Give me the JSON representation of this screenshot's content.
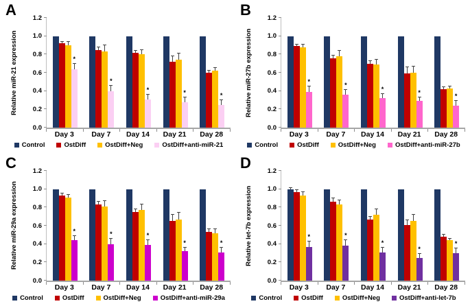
{
  "figure": {
    "background": "#ffffff",
    "panels": [
      "A",
      "B",
      "C",
      "D"
    ]
  },
  "axis": {
    "ylim": [
      0,
      1.2
    ],
    "ytick_labels": [
      "0.0",
      "0.2",
      "0.4",
      "0.6",
      "0.8",
      "1.0",
      "1.2"
    ],
    "grid": false
  },
  "colors": {
    "control": "#1F3864",
    "ostdiff": "#C00000",
    "ostdiff_neg": "#FFC000",
    "anti_mir21": "#FBCFF3",
    "anti_mir27b": "#FF66CC",
    "anti_mir29a": "#CC00CC",
    "anti_let7b": "#7030A0",
    "axis_line": "#A6A6A6"
  },
  "chart_data": [
    {
      "type": "bar",
      "panel": "A",
      "ylabel": "Relative miR-21 expression",
      "xlabel": "",
      "ylim": [
        0,
        1.2
      ],
      "grid": false,
      "legend_position": "bottom",
      "categories": [
        "Day 3",
        "Day 7",
        "Day 14",
        "Day 21",
        "Day 28"
      ],
      "series": [
        {
          "name": "Control",
          "color": "#1F3864",
          "values": [
            1.0,
            1.0,
            1.0,
            1.0,
            1.0
          ],
          "errors": [
            0,
            0,
            0,
            0,
            0
          ],
          "sig": [
            "",
            "",
            "",
            "",
            ""
          ]
        },
        {
          "name": "OstDiff",
          "color": "#C00000",
          "values": [
            0.92,
            0.85,
            0.82,
            0.72,
            0.6
          ],
          "errors": [
            0.02,
            0.03,
            0.02,
            0.06,
            0.02
          ],
          "sig": [
            "",
            "",
            "",
            "",
            ""
          ]
        },
        {
          "name": "OstDiff+Neg",
          "color": "#FFC000",
          "values": [
            0.9,
            0.83,
            0.8,
            0.74,
            0.62
          ],
          "errors": [
            0.04,
            0.07,
            0.05,
            0.07,
            0.03
          ],
          "sig": [
            "",
            "",
            "",
            "",
            ""
          ]
        },
        {
          "name": "OstDiff+anti-miR-21",
          "color": "#FBCFF3",
          "values": [
            0.64,
            0.4,
            0.31,
            0.28,
            0.25
          ],
          "errors": [
            0.06,
            0.06,
            0.05,
            0.05,
            0.05
          ],
          "sig": [
            "*",
            "*",
            "*",
            "*",
            "*"
          ]
        }
      ]
    },
    {
      "type": "bar",
      "panel": "B",
      "ylabel": "Relative miR-27b expression",
      "xlabel": "",
      "ylim": [
        0,
        1.2
      ],
      "grid": false,
      "legend_position": "bottom",
      "categories": [
        "Day 3",
        "Day 7",
        "Day 14",
        "Day 21",
        "Day 28"
      ],
      "series": [
        {
          "name": "Control",
          "color": "#1F3864",
          "values": [
            1.0,
            1.0,
            1.0,
            1.0,
            1.0
          ],
          "errors": [
            0,
            0,
            0,
            0,
            0
          ],
          "sig": [
            "",
            "",
            "",
            "",
            ""
          ]
        },
        {
          "name": "OstDiff",
          "color": "#C00000",
          "values": [
            0.89,
            0.76,
            0.7,
            0.59,
            0.42
          ],
          "errors": [
            0.02,
            0.03,
            0.03,
            0.07,
            0.02
          ],
          "sig": [
            "",
            "",
            "",
            "",
            ""
          ]
        },
        {
          "name": "OstDiff+Neg",
          "color": "#FFC000",
          "values": [
            0.88,
            0.78,
            0.69,
            0.6,
            0.43
          ],
          "errors": [
            0.03,
            0.06,
            0.05,
            0.07,
            0.02
          ],
          "sig": [
            "",
            "",
            "",
            "",
            ""
          ]
        },
        {
          "name": "OstDiff+anti-miR-27b",
          "color": "#FF66CC",
          "values": [
            0.39,
            0.36,
            0.32,
            0.29,
            0.24
          ],
          "errors": [
            0.06,
            0.05,
            0.05,
            0.04,
            0.05
          ],
          "sig": [
            "*",
            "*",
            "*",
            "*",
            "*"
          ]
        }
      ]
    },
    {
      "type": "bar",
      "panel": "C",
      "ylabel": "Relative miR-29a expression",
      "xlabel": "",
      "ylim": [
        0,
        1.2
      ],
      "grid": false,
      "legend_position": "bottom",
      "categories": [
        "Day 3",
        "Day 7",
        "Day 14",
        "Day 21",
        "Day 28"
      ],
      "series": [
        {
          "name": "Control",
          "color": "#1F3864",
          "values": [
            1.0,
            1.0,
            1.0,
            1.0,
            1.0
          ],
          "errors": [
            0,
            0,
            0,
            0,
            0
          ],
          "sig": [
            "",
            "",
            "",
            "",
            ""
          ]
        },
        {
          "name": "OstDiff",
          "color": "#C00000",
          "values": [
            0.93,
            0.83,
            0.75,
            0.65,
            0.53
          ],
          "errors": [
            0.02,
            0.03,
            0.03,
            0.07,
            0.03
          ],
          "sig": [
            "",
            "",
            "",
            "",
            ""
          ]
        },
        {
          "name": "OstDiff+Neg",
          "color": "#FFC000",
          "values": [
            0.91,
            0.81,
            0.77,
            0.67,
            0.52
          ],
          "errors": [
            0.03,
            0.06,
            0.06,
            0.07,
            0.04
          ],
          "sig": [
            "",
            "",
            "",
            "",
            ""
          ]
        },
        {
          "name": "OstDiff+anti-miR-29a",
          "color": "#CC00CC",
          "values": [
            0.44,
            0.4,
            0.39,
            0.32,
            0.31
          ],
          "errors": [
            0.05,
            0.06,
            0.05,
            0.04,
            0.05
          ],
          "sig": [
            "*",
            "*",
            "*",
            "*",
            "*"
          ]
        }
      ]
    },
    {
      "type": "bar",
      "panel": "D",
      "ylabel": "Relative let-7b expression",
      "xlabel": "",
      "ylim": [
        0,
        1.2
      ],
      "grid": false,
      "legend_position": "bottom",
      "categories": [
        "Day 3",
        "Day 7",
        "Day 14",
        "Day 21",
        "Day 28"
      ],
      "series": [
        {
          "name": "Control",
          "color": "#1F3864",
          "values": [
            1.0,
            1.0,
            1.0,
            1.0,
            1.0
          ],
          "errors": [
            0.01,
            0,
            0,
            0,
            0
          ],
          "sig": [
            "",
            "",
            "",
            "",
            ""
          ]
        },
        {
          "name": "OstDiff",
          "color": "#C00000",
          "values": [
            0.97,
            0.86,
            0.67,
            0.61,
            0.48
          ],
          "errors": [
            0.02,
            0.04,
            0.03,
            0.05,
            0.02
          ],
          "sig": [
            "",
            "",
            "",
            "",
            ""
          ]
        },
        {
          "name": "OstDiff+Neg",
          "color": "#FFC000",
          "values": [
            0.93,
            0.83,
            0.72,
            0.65,
            0.44
          ],
          "errors": [
            0.04,
            0.05,
            0.06,
            0.07,
            0.02
          ],
          "sig": [
            "",
            "",
            "",
            "",
            ""
          ]
        },
        {
          "name": "OstDiff+anti-let-7b",
          "color": "#7030A0",
          "values": [
            0.37,
            0.38,
            0.31,
            0.25,
            0.3
          ],
          "errors": [
            0.06,
            0.06,
            0.05,
            0.04,
            0.05
          ],
          "sig": [
            "*",
            "*",
            "*",
            "*",
            "*"
          ]
        }
      ]
    }
  ]
}
